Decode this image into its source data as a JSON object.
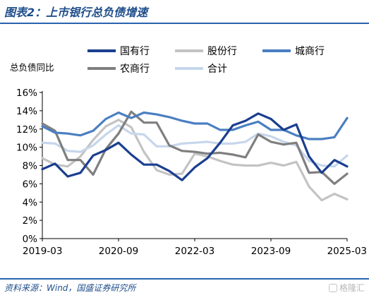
{
  "figure": {
    "title": "图表2：上市银行总负债增速",
    "source": "资料来源：Wind，国盛证券研究所",
    "watermark": "格隆汇"
  },
  "colors": {
    "axis": "#000000",
    "title": "#1f4e8c",
    "rule": "#2a64b0"
  },
  "chart_data": {
    "type": "line",
    "title": "",
    "xlabel": "",
    "ylabel": "总负债同比",
    "ylim": [
      0,
      16
    ],
    "yticks": [
      0,
      2,
      4,
      6,
      8,
      10,
      12,
      14,
      16
    ],
    "ytick_format": "percent",
    "x": [
      "2019-03",
      "2019-06",
      "2019-09",
      "2019-12",
      "2020-03",
      "2020-06",
      "2020-09",
      "2020-12",
      "2021-03",
      "2021-06",
      "2021-09",
      "2021-12",
      "2022-03",
      "2022-06",
      "2022-09",
      "2022-12",
      "2023-03",
      "2023-06",
      "2023-09",
      "2023-12",
      "2024-03",
      "2024-06",
      "2024-09",
      "2024-12",
      "2025-03"
    ],
    "xtick_labels": [
      "2019-03",
      "2020-09",
      "2022-03",
      "2023-09",
      "2025-03"
    ],
    "grid": false,
    "legend": "top",
    "series": [
      {
        "name": "国有行",
        "color": "#1a3f8f",
        "values": [
          7.6,
          8.2,
          6.8,
          7.2,
          9.1,
          9.7,
          10.5,
          9.2,
          8.1,
          8.1,
          7.4,
          6.4,
          7.8,
          8.8,
          10.5,
          12.4,
          12.9,
          13.7,
          13.1,
          11.9,
          12.5,
          9.0,
          7.2,
          8.6,
          7.9
        ]
      },
      {
        "name": "股份行",
        "color": "#c3c3c3",
        "values": [
          8.8,
          8.1,
          7.9,
          9.0,
          10.8,
          12.3,
          13.0,
          12.2,
          9.5,
          7.5,
          7.0,
          7.1,
          9.3,
          9.0,
          8.5,
          8.1,
          8.0,
          8.0,
          8.3,
          8.0,
          8.4,
          5.7,
          4.2,
          4.9,
          4.3
        ]
      },
      {
        "name": "城商行",
        "color": "#4a7fc1",
        "values": [
          12.3,
          11.6,
          11.5,
          11.3,
          11.8,
          13.1,
          13.8,
          13.2,
          13.8,
          13.6,
          13.3,
          12.9,
          12.6,
          12.6,
          11.9,
          11.9,
          12.4,
          12.8,
          11.9,
          11.9,
          11.3,
          10.9,
          10.9,
          11.1,
          13.2
        ]
      },
      {
        "name": "农商行",
        "color": "#7f7f7f",
        "values": [
          12.6,
          11.8,
          8.6,
          8.6,
          7.0,
          9.8,
          11.5,
          13.9,
          12.7,
          12.7,
          10.2,
          9.6,
          9.5,
          9.3,
          9.4,
          9.2,
          8.9,
          11.4,
          10.6,
          10.3,
          10.5,
          7.2,
          7.3,
          6.0,
          7.1
        ]
      },
      {
        "name": "合计",
        "color": "#c6d6ec",
        "values": [
          10.5,
          10.4,
          9.6,
          9.5,
          10.2,
          11.4,
          12.4,
          11.5,
          11.4,
          10.1,
          10.1,
          10.4,
          10.5,
          10.6,
          10.4,
          10.4,
          10.6,
          11.5,
          11.2,
          10.6,
          10.2,
          8.5,
          8.0,
          7.9,
          9.1
        ]
      }
    ]
  }
}
